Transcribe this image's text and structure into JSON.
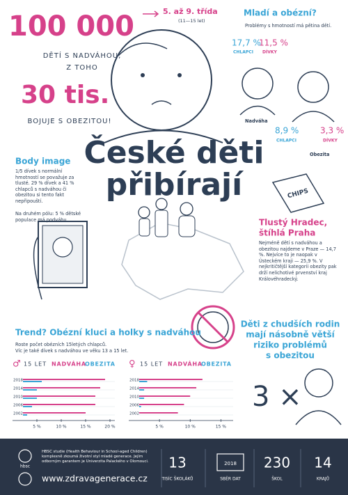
{
  "headline": {
    "big": "100 000",
    "line1": "DĚTÍ S NADVÁHOU,",
    "line2": "Z TOHO",
    "big2": "30 tis.",
    "line3": "BOJUJE S OBEZITOU!"
  },
  "grade": {
    "title": "5. až 9. třída",
    "ages": "(11—15 let)"
  },
  "young": {
    "title": "Mladí a obézní?",
    "text": "Problémy s hmotností má pětina dětí.",
    "overweight": {
      "boys": "17,7 %",
      "boys_label": "CHLAPCI",
      "girls": "11,5 %",
      "girls_label": "DÍVKY",
      "label": "Nadváha"
    },
    "obesity": {
      "boys": "8,9 %",
      "boys_label": "CHLAPCI",
      "girls": "3,3 %",
      "girls_label": "DÍVKY",
      "label": "Obezita"
    }
  },
  "title": [
    "České děti",
    "přibírají"
  ],
  "body_image": {
    "title": "Body image",
    "text": "1/5 dívek s normální hmotností se považuje za tlusté. 29 % dívek a 41 % chlapců s nadváhou či obezitou si tento fakt nepřipouští.",
    "text2": "Na druhém pólu: 5 % dětské populace má podváhu."
  },
  "chips": "CHIPS",
  "regions": {
    "title": [
      "Tlustý Hradec,",
      "štíhlá Praha"
    ],
    "text": "Nejméně dětí s nadváhou a obezitou najdeme v Praze — 14,7 %. Nejvíce to je naopak v Ústeckém kraji — 25,9 %. V nejkritičtější kategorii obezity pak drží nelichotivé prvenství kraj Královéhradecký."
  },
  "trend": {
    "title": "Trend? Obézní kluci a holky s nadváhou",
    "text": [
      "Roste počet obézních 15letých chlapců.",
      "Víc je také dívek s nadváhou ve věku 13 a 15 let."
    ]
  },
  "poor": {
    "title": [
      "Děti z chudších rodin",
      "mají násobně větší",
      "riziko problémů",
      "s obezitou"
    ],
    "multiplier": "3 ×"
  },
  "charts": [
    {
      "symbol": "♂",
      "age": "15 LET",
      "categories": [
        "2018",
        "2014",
        "2010",
        "2006",
        "2002"
      ],
      "series": [
        {
          "name": "NADVÁHA",
          "color": "#d6418a",
          "values": [
            19,
            18,
            17,
            17,
            15
          ]
        },
        {
          "name": "OBEZITA",
          "color": "#3aa5d6",
          "values": [
            6,
            5,
            5,
            4,
            3
          ]
        }
      ],
      "xlim": [
        0,
        21
      ],
      "xticks": [
        {
          "value": 5,
          "label": "5 %"
        },
        {
          "value": 10,
          "label": "10 %"
        },
        {
          "value": 15,
          "label": "15 %"
        },
        {
          "value": 20,
          "label": "20 %"
        }
      ]
    },
    {
      "symbol": "♀",
      "age": "15 LET",
      "categories": [
        "2018",
        "2014",
        "2010",
        "2006",
        "2002"
      ],
      "series": [
        {
          "name": "NADVÁHA",
          "color": "#d6418a",
          "values": [
            12,
            11,
            10,
            9,
            8
          ]
        },
        {
          "name": "OBEZITA",
          "color": "#3aa5d6",
          "values": [
            3,
            2.5,
            2.5,
            2,
            1.5
          ]
        }
      ],
      "xlim": [
        0,
        17
      ],
      "xticks": [
        {
          "value": 5,
          "label": "5 %"
        },
        {
          "value": 10,
          "label": "10 %"
        },
        {
          "value": 15,
          "label": "15 %"
        }
      ]
    }
  ],
  "footer": {
    "about": "HBSC studie (Health Behaviour in School-aged Children) komplexně zkoumá životní styl mladé generace. Jejím odborným garantem je Univerzita Palackého v Olomouci.",
    "logo": "hbsc",
    "url": "www.zdravagenerace.cz",
    "stats": [
      {
        "value": "13",
        "label": "TISÍC ŠKOLÁKŮ"
      },
      {
        "value": "2018",
        "label": "SBĚR DAT"
      },
      {
        "value": "230",
        "label": "ŠKOL"
      },
      {
        "value": "14",
        "label": "KRAJŮ"
      }
    ]
  }
}
